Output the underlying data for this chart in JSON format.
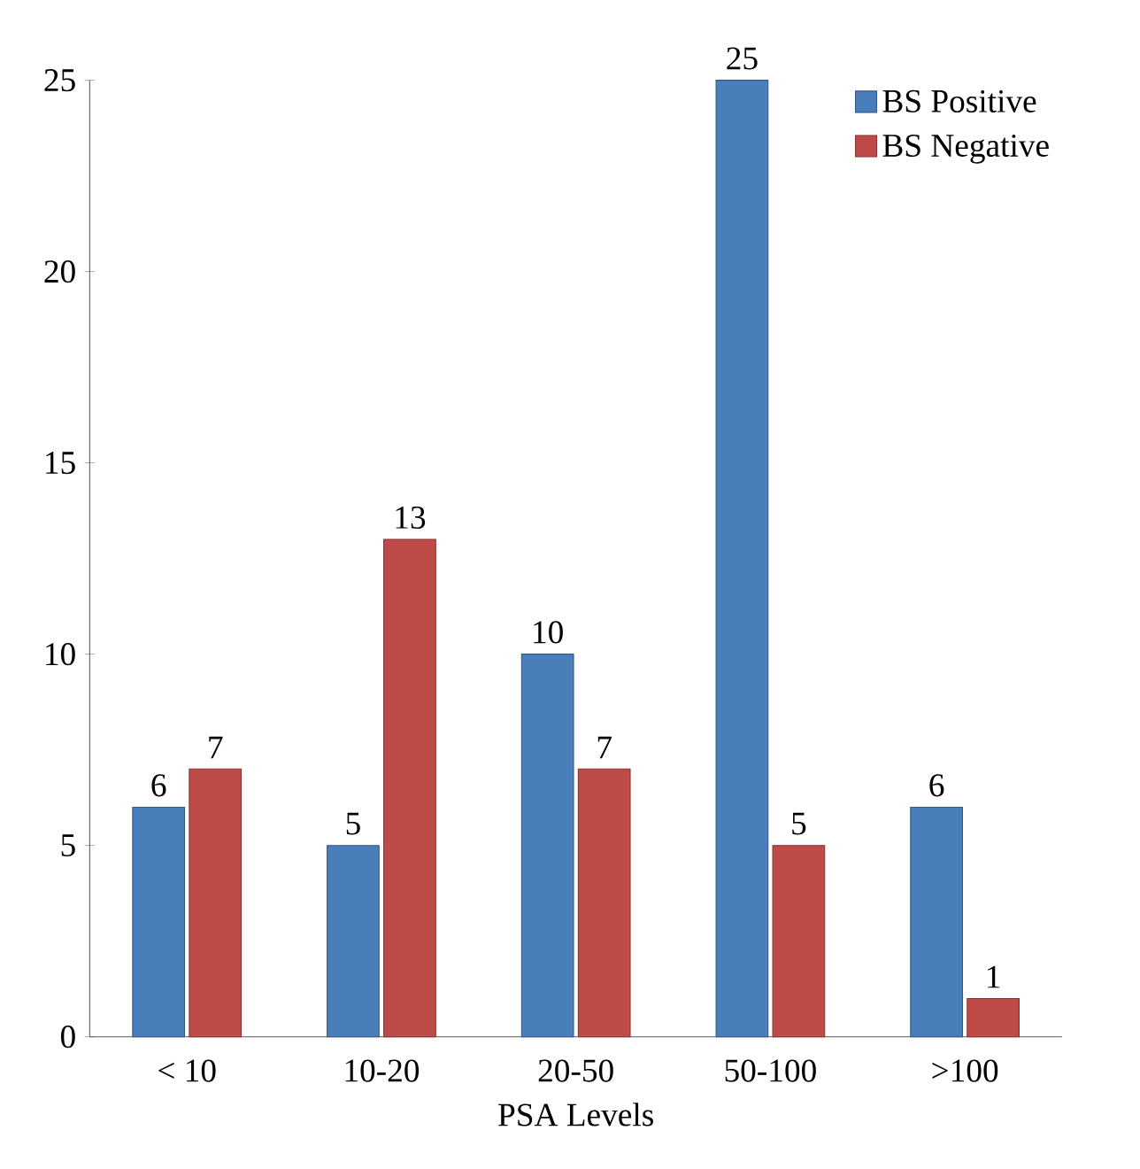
{
  "chart_data": {
    "type": "bar",
    "xlabel": "PSA Levels",
    "categories": [
      "< 10",
      "10-20",
      "20-50",
      "50-100",
      ">100"
    ],
    "series": [
      {
        "name": "BS Positive",
        "color": "#4a7ebb",
        "values": [
          6,
          5,
          10,
          25,
          6
        ]
      },
      {
        "name": "BS Negative",
        "color": "#be4b48",
        "values": [
          7,
          13,
          7,
          5,
          1
        ]
      }
    ],
    "ylim": [
      0,
      25
    ],
    "yticks": [
      0,
      5,
      10,
      15,
      20,
      25
    ],
    "data_labels": true,
    "legend": "top right",
    "grid": false
  }
}
